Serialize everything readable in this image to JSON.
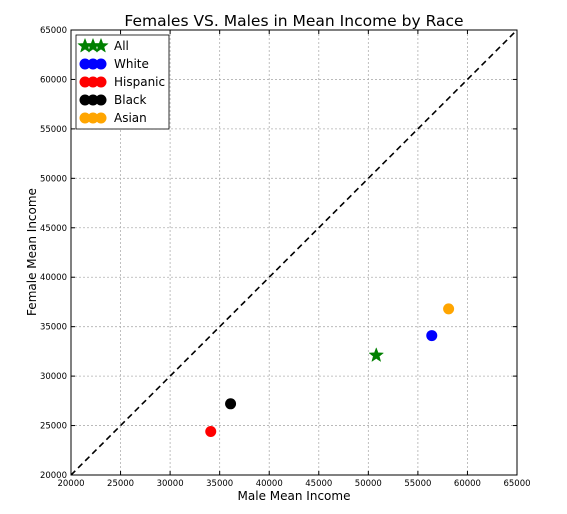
{
  "chart_data": {
    "type": "scatter",
    "title": "Females VS. Males in Mean Income by Race",
    "xlabel": "Male Mean Income",
    "ylabel": "Female Mean Income",
    "xlim": [
      20000,
      65000
    ],
    "ylim": [
      20000,
      65000
    ],
    "x_ticks": [
      "20000",
      "25000",
      "30000",
      "35000",
      "40000",
      "45000",
      "50000",
      "55000",
      "60000",
      "65000"
    ],
    "y_ticks": [
      "20000",
      "25000",
      "30000",
      "35000",
      "40000",
      "45000",
      "50000",
      "55000",
      "60000",
      "65000"
    ],
    "grid": true,
    "reference_line": {
      "style": "dashed",
      "color": "#000000",
      "from": [
        20000,
        20000
      ],
      "to": [
        65000,
        65000
      ]
    },
    "legend_position": "top-left",
    "series": [
      {
        "name": "All",
        "marker": "star",
        "color": "#008000",
        "points": [
          [
            50800,
            32100
          ]
        ]
      },
      {
        "name": "White",
        "marker": "circle",
        "color": "#0000ff",
        "points": [
          [
            56400,
            34100
          ]
        ]
      },
      {
        "name": "Hispanic",
        "marker": "circle",
        "color": "#ff0000",
        "points": [
          [
            34100,
            24400
          ]
        ]
      },
      {
        "name": "Black",
        "marker": "circle",
        "color": "#000000",
        "points": [
          [
            36100,
            27200
          ]
        ]
      },
      {
        "name": "Asian",
        "marker": "circle",
        "color": "#ffa500",
        "points": [
          [
            58100,
            36800
          ]
        ]
      }
    ]
  }
}
